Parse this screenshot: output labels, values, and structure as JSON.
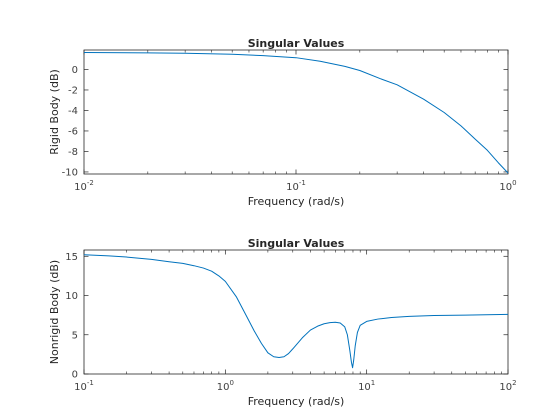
{
  "chart_data": [
    {
      "type": "line",
      "title": "Singular Values",
      "xlabel": "Frequency (rad/s)",
      "ylabel": "Rigid Body (dB)",
      "xscale": "log",
      "xlim": [
        0.01,
        1
      ],
      "ylim": [
        -10.2,
        1.9
      ],
      "grid": false,
      "xticks": [
        {
          "value": 0.01,
          "base": "10",
          "exp": "-2"
        },
        {
          "value": 0.1,
          "base": "10",
          "exp": "-1"
        },
        {
          "value": 1,
          "base": "10",
          "exp": "0"
        }
      ],
      "yticks": [
        0,
        -2,
        -4,
        -6,
        -8,
        -10
      ],
      "series": [
        {
          "color": "#0072bd",
          "x": [
            0.01,
            0.02,
            0.03,
            0.05,
            0.07,
            0.1,
            0.13,
            0.17,
            0.2,
            0.25,
            0.3,
            0.4,
            0.5,
            0.6,
            0.7,
            0.8,
            0.9,
            1.0
          ],
          "y": [
            1.65,
            1.62,
            1.58,
            1.48,
            1.35,
            1.15,
            0.8,
            0.3,
            -0.1,
            -0.9,
            -1.5,
            -2.9,
            -4.2,
            -5.5,
            -6.8,
            -7.9,
            -9.1,
            -10.1
          ]
        }
      ]
    },
    {
      "type": "line",
      "title": "Singular Values",
      "xlabel": "Frequency (rad/s)",
      "ylabel": "Nonrigid Body (dB)",
      "xscale": "log",
      "xlim": [
        0.1,
        100
      ],
      "ylim": [
        0,
        15.8
      ],
      "grid": false,
      "xticks": [
        {
          "value": 0.1,
          "base": "10",
          "exp": "-1"
        },
        {
          "value": 1,
          "base": "10",
          "exp": "0"
        },
        {
          "value": 10,
          "base": "10",
          "exp": "1"
        },
        {
          "value": 100,
          "base": "10",
          "exp": "2"
        }
      ],
      "yticks": [
        0,
        5,
        10,
        15
      ],
      "series": [
        {
          "color": "#0072bd",
          "x": [
            0.1,
            0.15,
            0.2,
            0.3,
            0.4,
            0.5,
            0.6,
            0.7,
            0.8,
            0.9,
            1.0,
            1.2,
            1.4,
            1.6,
            1.8,
            2.0,
            2.2,
            2.4,
            2.6,
            2.8,
            3.0,
            3.5,
            4.0,
            4.5,
            5.0,
            5.5,
            6.0,
            6.5,
            7.0,
            7.3,
            7.6,
            7.8,
            7.95,
            8.1,
            8.3,
            8.6,
            9.0,
            10,
            12,
            15,
            20,
            30,
            50,
            70,
            100
          ],
          "y": [
            15.2,
            15.05,
            14.9,
            14.6,
            14.3,
            14.1,
            13.8,
            13.5,
            13.1,
            12.5,
            11.8,
            9.8,
            7.5,
            5.5,
            3.9,
            2.7,
            2.2,
            2.1,
            2.2,
            2.6,
            3.2,
            4.6,
            5.6,
            6.1,
            6.4,
            6.55,
            6.6,
            6.5,
            6.0,
            5.0,
            3.0,
            1.5,
            0.8,
            1.8,
            3.6,
            5.3,
            6.2,
            6.7,
            7.0,
            7.2,
            7.35,
            7.45,
            7.5,
            7.55,
            7.6
          ]
        }
      ]
    }
  ]
}
